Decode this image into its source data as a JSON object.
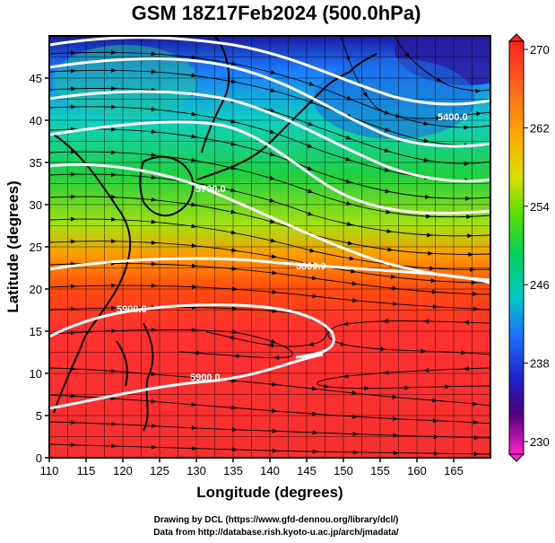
{
  "title": "GSM 18Z17Feb2024 (500.0hPa)",
  "xlabel": "Longitude (degrees)",
  "ylabel": "Latitude  (degrees)",
  "x_ticks": [
    "110",
    "115",
    "120",
    "125",
    "130",
    "135",
    "140",
    "145",
    "150",
    "155",
    "160",
    "165"
  ],
  "y_ticks": [
    "0",
    "5",
    "10",
    "15",
    "20",
    "25",
    "30",
    "35",
    "40",
    "45"
  ],
  "colorbar": {
    "ticks": [
      "270",
      "262",
      "254",
      "246",
      "238",
      "230"
    ],
    "gradient": [
      "#ff2222",
      "#ff6a1a",
      "#ffb000",
      "#d8e000",
      "#55e000",
      "#00d060",
      "#00c8c8",
      "#1e6aff",
      "#2020c8",
      "#4a007a",
      "#ff20c8"
    ]
  },
  "contour_labels": [
    "5400.0",
    "5700.0",
    "5800.0",
    "5900.0",
    "5900.0"
  ],
  "credits": {
    "line1": "Drawing by DCL (https://www.gfd-dennou.org/library/dcl/)",
    "line2": "Data from http://database.rish.kyoto-u.ac.jp/arch/jmadata/"
  }
}
